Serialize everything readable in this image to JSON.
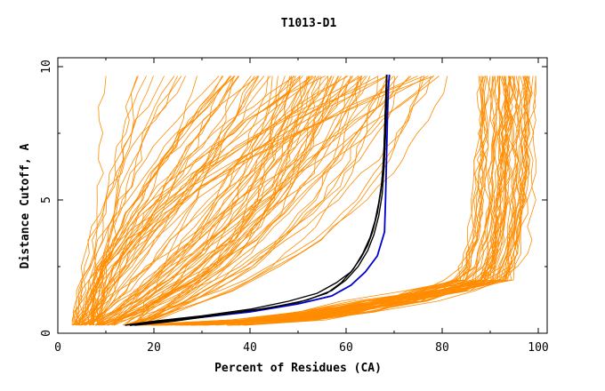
{
  "chart_data": {
    "type": "line",
    "title": "T1013-D1",
    "xlabel": "Percent of Residues (CA)",
    "ylabel": "Distance Cutoff, A",
    "xlim": [
      0,
      100
    ],
    "ylim": [
      0,
      10
    ],
    "x_ticks": [
      "0",
      "20",
      "40",
      "60",
      "80",
      "100"
    ],
    "y_ticks": [
      "0",
      "5",
      "10"
    ],
    "grid": false,
    "legend": "none",
    "colors": {
      "background_models": "#FF8C00",
      "highlighted_models": "#000000",
      "reference_model": "#0000CD"
    },
    "series": [
      {
        "role": "reference",
        "color": "#0000CD",
        "x": [
          15,
          20,
          30,
          40,
          50,
          57,
          61,
          64,
          66.5,
          67.5,
          68,
          68.2,
          68.4,
          68.6,
          68.8,
          69
        ],
        "y": [
          0.3,
          0.4,
          0.6,
          0.8,
          1.1,
          1.4,
          1.8,
          2.3,
          2.9,
          3.5,
          3.8,
          5,
          6.5,
          8,
          9.2,
          9.7
        ]
      },
      {
        "role": "highlighted",
        "color": "#000000",
        "x": [
          14,
          20,
          30,
          40,
          48,
          54,
          58,
          61,
          63,
          64.5,
          65.5,
          66.5,
          67.2,
          67.6,
          67.9,
          68.1,
          68.3,
          68.5
        ],
        "y": [
          0.3,
          0.45,
          0.65,
          0.9,
          1.2,
          1.5,
          1.9,
          2.3,
          2.8,
          3.3,
          3.8,
          4.5,
          5.3,
          6,
          7,
          8,
          9,
          9.7
        ]
      },
      {
        "role": "highlighted",
        "color": "#000000",
        "x": [
          15,
          22,
          32,
          42,
          50,
          56,
          59,
          61.5,
          63.5,
          65,
          66,
          66.8,
          67.4,
          67.8,
          68,
          68.2,
          68.4
        ],
        "y": [
          0.3,
          0.45,
          0.65,
          0.9,
          1.15,
          1.5,
          1.9,
          2.4,
          3,
          3.6,
          4.2,
          4.9,
          5.6,
          6.5,
          7.5,
          8.6,
          9.7
        ]
      },
      {
        "role": "highlighted",
        "color": "#000000",
        "x": [
          16,
          24,
          34,
          44,
          52,
          57,
          60,
          62.5,
          64.5,
          65.8,
          66.8,
          67.5,
          67.9,
          68.2,
          68.4,
          68.5
        ],
        "y": [
          0.3,
          0.45,
          0.7,
          0.95,
          1.25,
          1.6,
          2,
          2.5,
          3.1,
          3.7,
          4.4,
          5.2,
          6.2,
          7.4,
          8.6,
          9.7
        ]
      }
    ]
  }
}
